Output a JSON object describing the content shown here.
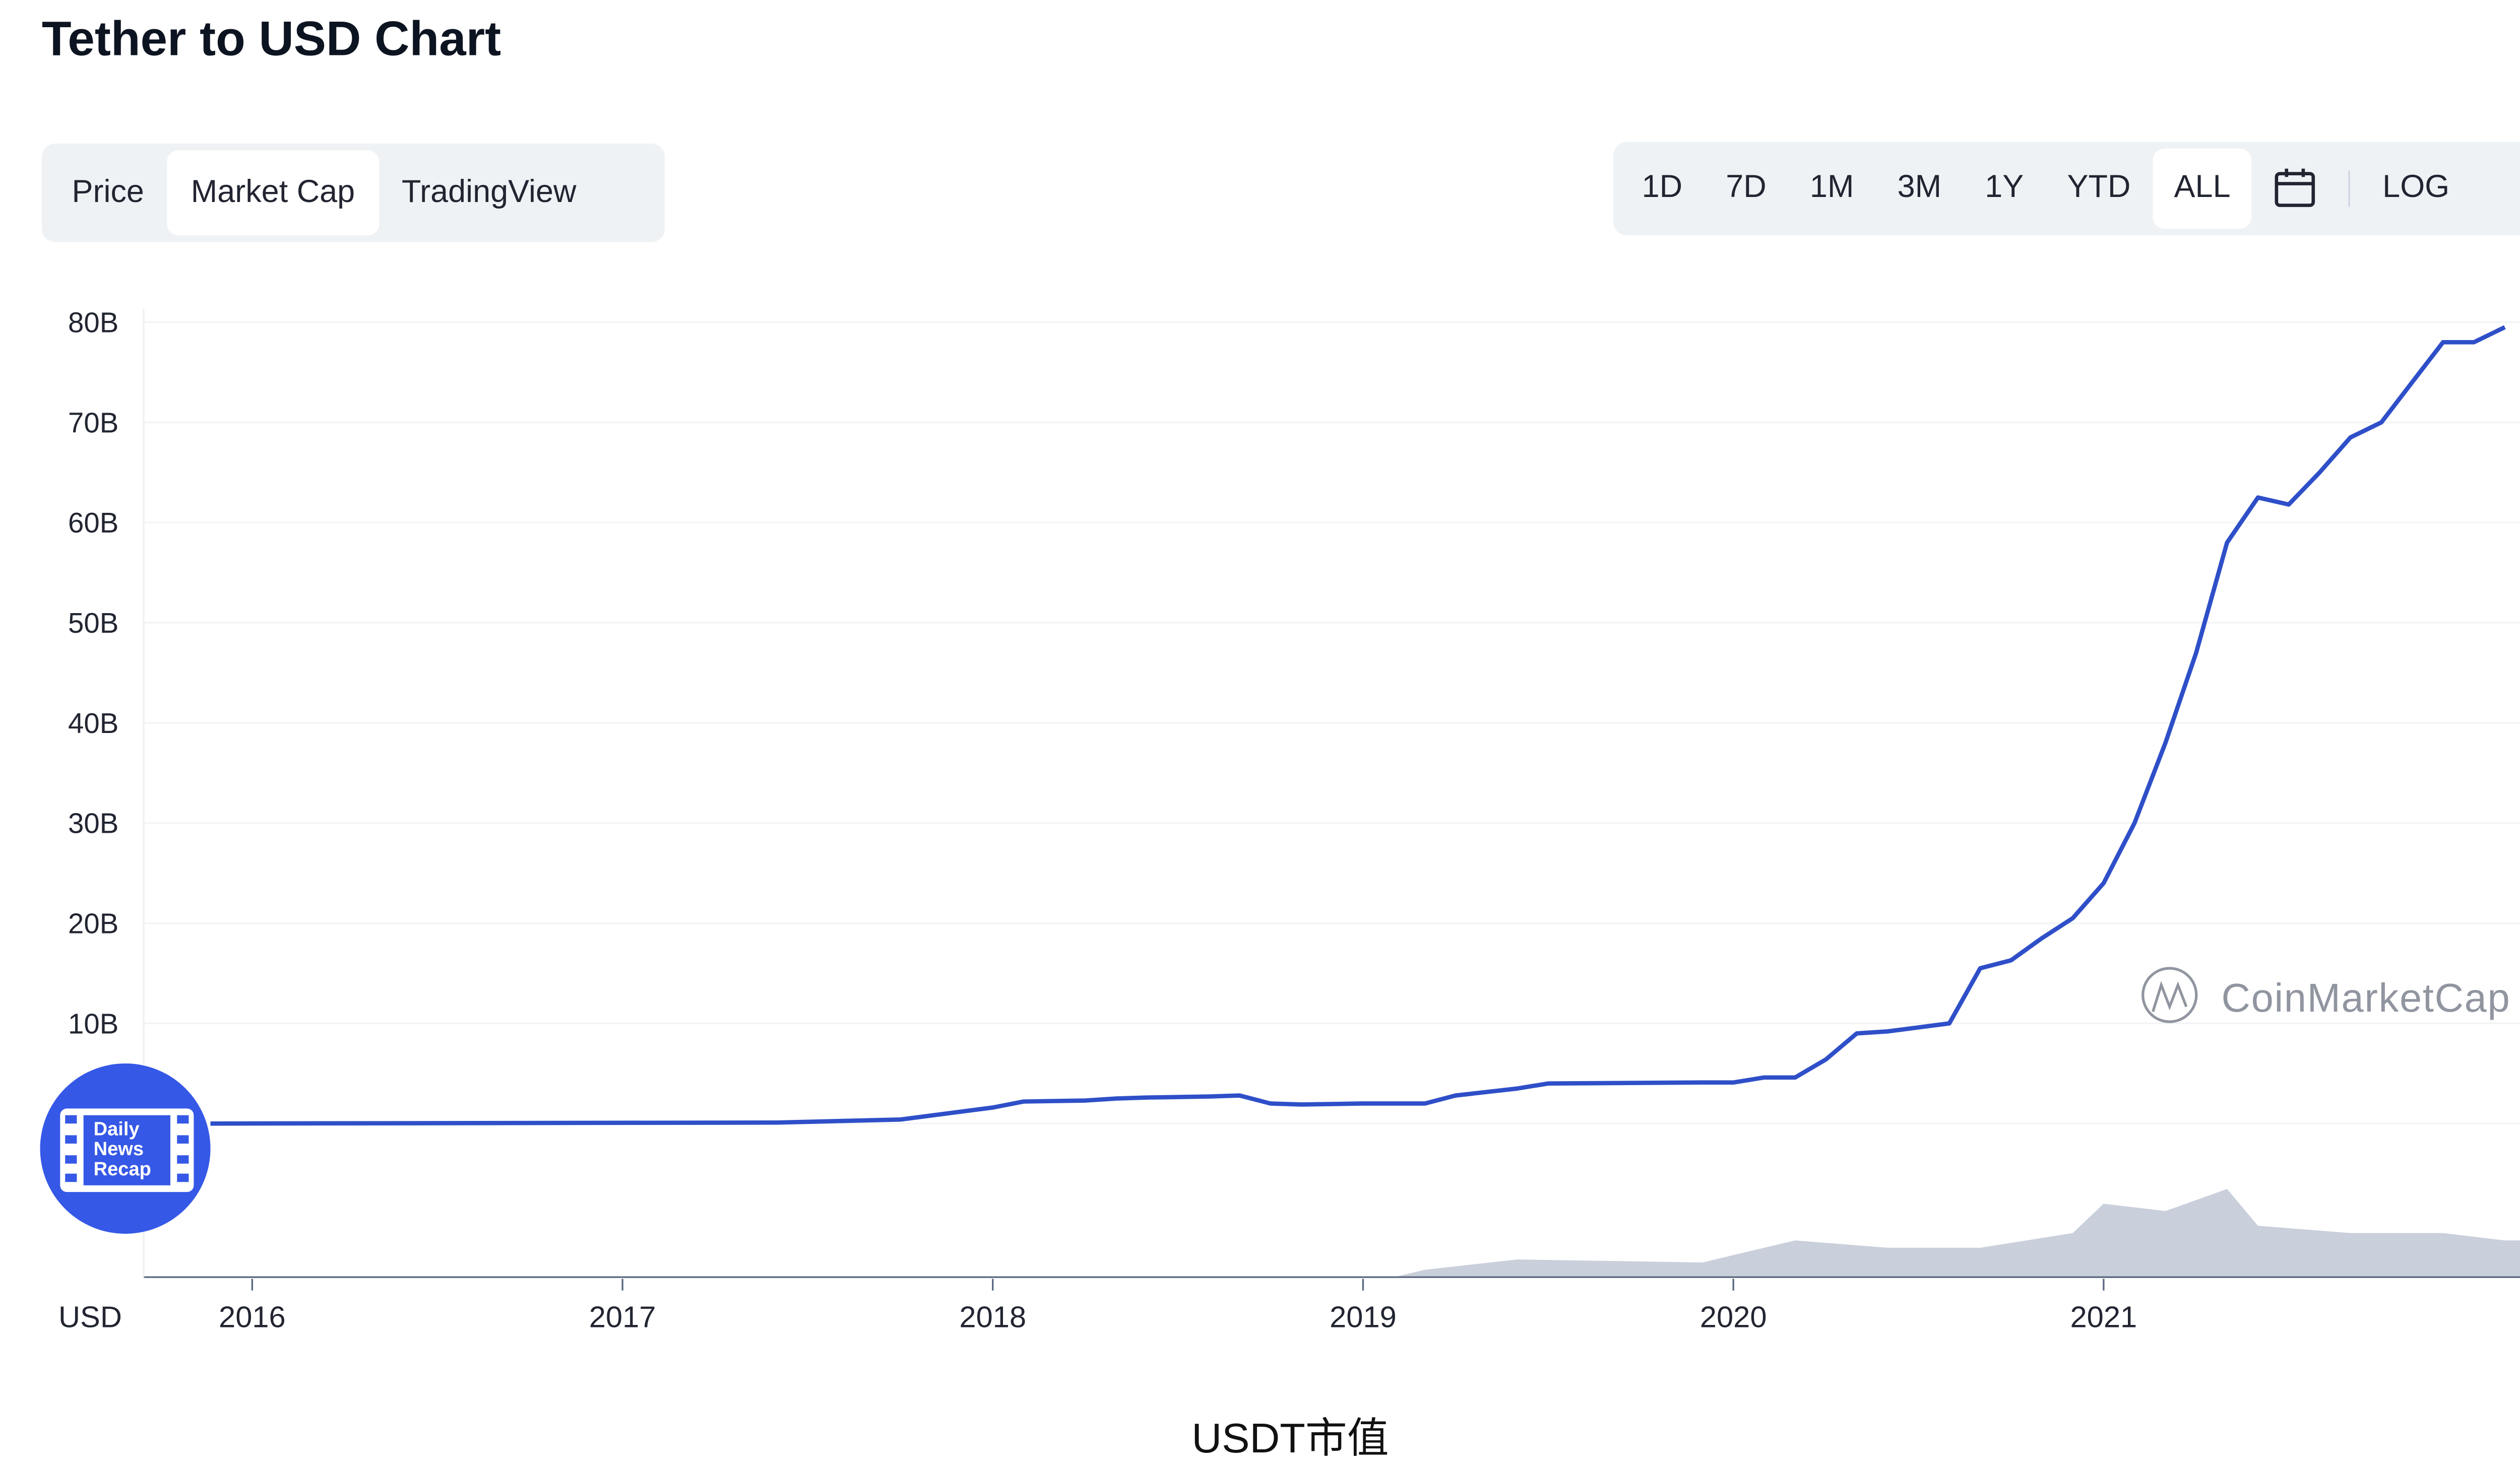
{
  "title": "Tether to USD Chart",
  "chart_tabs": [
    {
      "label": "Price",
      "active": false
    },
    {
      "label": "Market Cap",
      "active": true
    },
    {
      "label": "TradingView",
      "active": false
    }
  ],
  "range_buttons": [
    {
      "label": "1D",
      "active": false
    },
    {
      "label": "7D",
      "active": false
    },
    {
      "label": "1M",
      "active": false
    },
    {
      "label": "3M",
      "active": false
    },
    {
      "label": "1Y",
      "active": false
    },
    {
      "label": "YTD",
      "active": false
    },
    {
      "label": "ALL",
      "active": true
    }
  ],
  "calendar_icon": "calendar-icon",
  "log_label": "LOG",
  "watermarks": {
    "coinmarketcap": "CoinMarketCap",
    "daily_news": "Daily News Recap"
  },
  "caption": "USDT市值",
  "colors": {
    "line": "#2e4fc8",
    "volume": "#c9cfdb",
    "logo": "#3558e6"
  },
  "chart_data": {
    "type": "line",
    "title": "",
    "currency_label": "USD",
    "y_tick_labels": [
      "10B",
      "20B",
      "30B",
      "40B",
      "50B",
      "60B",
      "70B",
      "80B"
    ],
    "y_ticks": [
      10,
      20,
      30,
      40,
      50,
      60,
      70,
      80
    ],
    "ylim": [
      0,
      80
    ],
    "x_tick_labels": [
      "2016",
      "2017",
      "2018",
      "2019",
      "2020",
      "2021"
    ],
    "xlim": [
      "2015-09",
      "2022-02"
    ],
    "grid": true,
    "series": [
      {
        "unit": "B USD",
        "x": [
          "2015-09",
          "2017-06",
          "2017-10",
          "2017-12",
          "2018-01",
          "2018-02",
          "2018-04",
          "2018-05",
          "2018-06",
          "2018-08",
          "2018-09",
          "2018-10",
          "2018-11",
          "2019-01",
          "2019-03",
          "2019-04",
          "2019-06",
          "2019-07",
          "2019-12",
          "2020-01",
          "2020-02",
          "2020-03",
          "2020-04",
          "2020-05",
          "2020-06",
          "2020-08",
          "2020-09",
          "2020-10",
          "2020-11",
          "2020-12",
          "2021-01",
          "2021-02",
          "2021-03",
          "2021-04",
          "2021-05",
          "2021-06",
          "2021-07",
          "2021-08",
          "2021-09",
          "2021-10",
          "2021-11",
          "2021-12",
          "2022-01",
          "2022-02"
        ],
        "values": [
          0.0,
          0.1,
          0.4,
          1.2,
          1.6,
          2.2,
          2.3,
          2.5,
          2.6,
          2.7,
          2.8,
          2.0,
          1.9,
          2.0,
          2.0,
          2.8,
          3.5,
          4.0,
          4.1,
          4.1,
          4.6,
          4.6,
          6.4,
          9.0,
          9.2,
          10.0,
          15.5,
          16.3,
          18.5,
          20.5,
          24,
          30,
          38,
          47,
          58,
          62.5,
          61.8,
          65,
          68.5,
          70,
          74,
          78,
          78,
          79.5
        ]
      }
    ],
    "volume": {
      "x": [
        "2019-02",
        "2019-03",
        "2019-06",
        "2019-12",
        "2020-03",
        "2020-06",
        "2020-09",
        "2020-12",
        "2021-01",
        "2021-03",
        "2021-05",
        "2021-06",
        "2021-09",
        "2021-12",
        "2022-02"
      ],
      "relative_level": [
        0.0,
        0.05,
        0.12,
        0.1,
        0.25,
        0.2,
        0.2,
        0.3,
        0.5,
        0.45,
        0.6,
        0.35,
        0.3,
        0.3,
        0.25
      ]
    }
  }
}
